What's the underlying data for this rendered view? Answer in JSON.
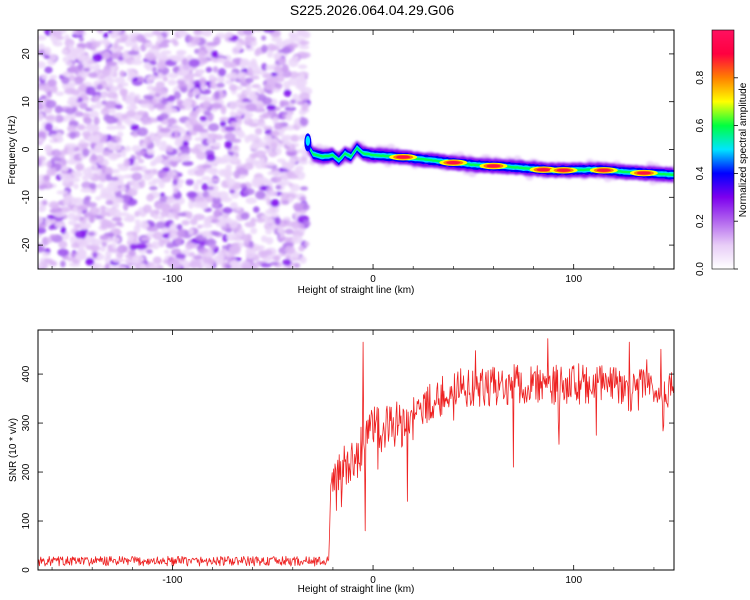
{
  "figure": {
    "title": "S225.2026.064.04.29.G06"
  },
  "chart_data": [
    {
      "type": "heatmap",
      "title": "S225.2026.064.04.29.G06",
      "xlabel": "Height of straight line (km)",
      "ylabel": "Frequency (Hz)",
      "xlim": [
        -167,
        150
      ],
      "ylim": [
        -25,
        25
      ],
      "x_ticks": [
        -100,
        0,
        100
      ],
      "y_ticks": [
        -20,
        -10,
        0,
        10,
        20
      ],
      "noise_region_x": [
        -167,
        -33
      ],
      "signal_start_km": -33,
      "signal_trace": {
        "x": [
          -33,
          -30,
          -25,
          -20,
          -17,
          -14,
          -11,
          -8,
          -5,
          -2,
          0,
          5,
          15,
          30,
          50,
          70,
          90,
          110,
          130,
          150
        ],
        "y": [
          1.5,
          -1.0,
          -1.5,
          -1.2,
          -2.2,
          -0.8,
          -1.5,
          0.3,
          -0.8,
          -1.0,
          -1.2,
          -1.3,
          -1.6,
          -2.3,
          -3.2,
          -3.7,
          -4.4,
          -4.2,
          -4.8,
          -5.3
        ]
      },
      "hot_spots_x": [
        15,
        40,
        60,
        85,
        95,
        115,
        135
      ],
      "colorbar": {
        "label": "Normalized spectral amplitude",
        "range": [
          0,
          1
        ],
        "ticks": [
          0.0,
          0.2,
          0.4,
          0.6,
          0.8
        ],
        "tick_labels": [
          "0.0",
          "0.2",
          "0.4",
          "0.6",
          "0.8"
        ],
        "colormap": [
          "#ffffff",
          "#e8cdf7",
          "#b266ee",
          "#7d00ee",
          "#0000ff",
          "#00e5ff",
          "#00ff40",
          "#ffff00",
          "#ff8000",
          "#ff0040",
          "#ff1060"
        ]
      }
    },
    {
      "type": "line",
      "xlabel": "Height of straight line (km)",
      "ylabel": "SNR (10 * v/v)",
      "xlim": [
        -167,
        150
      ],
      "ylim": [
        0,
        490
      ],
      "x_ticks": [
        -100,
        0,
        100
      ],
      "y_ticks": [
        0,
        100,
        200,
        300,
        400
      ],
      "line_color": "#ee2222",
      "envelope": {
        "x": [
          -167,
          -30,
          -22,
          -21,
          -15,
          -8,
          -5,
          -3,
          0,
          15,
          20,
          30,
          40,
          60,
          80,
          100,
          120,
          150
        ],
        "mean": [
          18,
          18,
          18,
          190,
          200,
          230,
          250,
          270,
          285,
          300,
          310,
          350,
          370,
          375,
          380,
          378,
          380,
          370
        ],
        "noise": [
          10,
          10,
          10,
          40,
          40,
          50,
          50,
          50,
          50,
          50,
          45,
          45,
          40,
          40,
          40,
          40,
          40,
          40
        ]
      },
      "spikes": [
        {
          "x": -5,
          "y": 465
        },
        {
          "x": -4,
          "y": 80
        },
        {
          "x": 17,
          "y": 140
        },
        {
          "x": 70,
          "y": 210
        }
      ]
    }
  ]
}
